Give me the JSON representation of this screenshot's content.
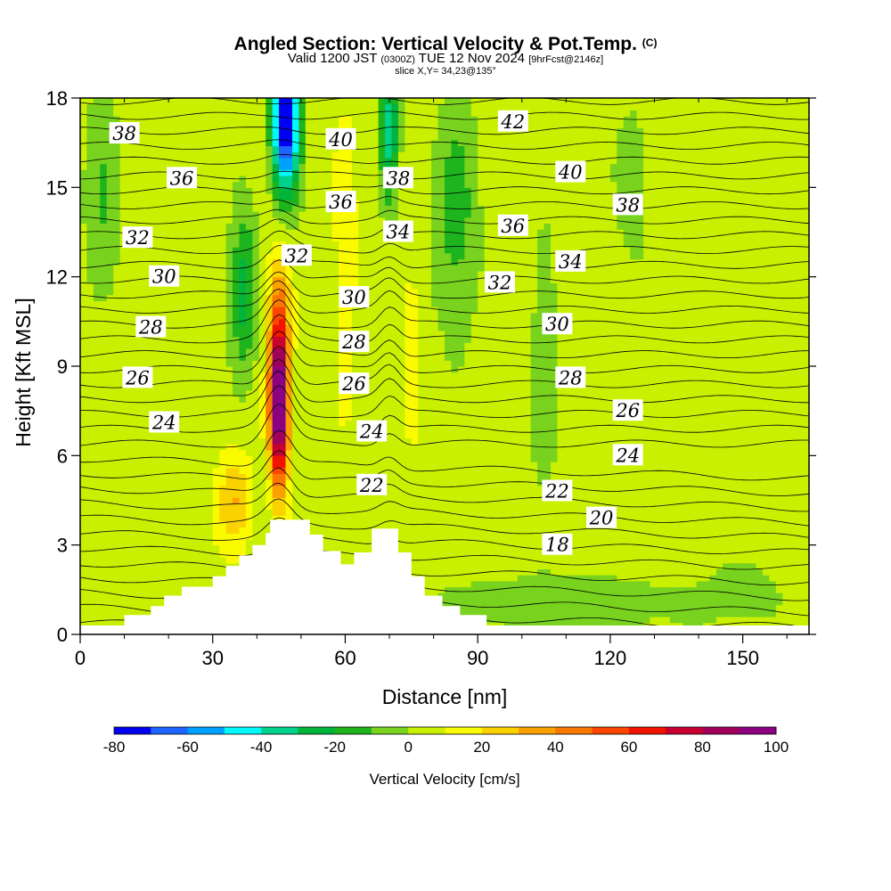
{
  "header": {
    "title": "Angled Section: Vertical Velocity & Pot.Temp.",
    "title_mark": "(C)",
    "subtitle_a": "Valid 1200 JST",
    "subtitle_b": "(0300Z)",
    "subtitle_c": "TUE 12 Nov 2024",
    "subtitle_d": "[9hrFcst@2146z]",
    "slice": "slice X,Y= 34,23@135°"
  },
  "chart_data": {
    "type": "heatmap",
    "xlabel": "Distance [nm]",
    "ylabel": "Height [Kft MSL]",
    "xlim": [
      0,
      165
    ],
    "ylim": [
      0,
      18
    ],
    "x_ticks": [
      0,
      30,
      60,
      90,
      120,
      150
    ],
    "y_ticks": [
      0,
      3,
      6,
      9,
      12,
      15,
      18
    ],
    "colorbar": {
      "label": "Vertical Velocity [cm/s]",
      "ticks": [
        -80,
        -60,
        -40,
        -20,
        0,
        20,
        40,
        60,
        80,
        100
      ],
      "levels": [
        -80,
        -70,
        -60,
        -50,
        -40,
        -30,
        -20,
        -10,
        0,
        10,
        20,
        30,
        40,
        50,
        60,
        70,
        80,
        90,
        100
      ],
      "colors": [
        "#0000f0",
        "#1e64ff",
        "#00a0ff",
        "#00fafa",
        "#00d28c",
        "#00b43c",
        "#1eb41e",
        "#78d21e",
        "#c8f000",
        "#fafa00",
        "#fad200",
        "#faa000",
        "#fa7800",
        "#fa4600",
        "#f01400",
        "#c80032",
        "#a0005a",
        "#8c0082"
      ]
    },
    "terrain_profile_kft": [
      [
        0,
        0.3
      ],
      [
        10,
        0.3
      ],
      [
        10,
        0.65
      ],
      [
        16,
        0.65
      ],
      [
        16,
        0.95
      ],
      [
        19,
        0.95
      ],
      [
        19,
        1.3
      ],
      [
        23,
        1.3
      ],
      [
        23,
        1.6
      ],
      [
        30,
        1.6
      ],
      [
        30,
        1.95
      ],
      [
        33,
        1.95
      ],
      [
        33,
        2.3
      ],
      [
        36,
        2.3
      ],
      [
        36,
        2.65
      ],
      [
        39,
        2.65
      ],
      [
        39,
        3.0
      ],
      [
        42,
        3.0
      ],
      [
        42,
        3.4
      ],
      [
        43,
        3.4
      ],
      [
        43,
        3.85
      ],
      [
        52,
        3.85
      ],
      [
        52,
        3.35
      ],
      [
        55,
        3.35
      ],
      [
        55,
        2.8
      ],
      [
        59,
        2.8
      ],
      [
        59,
        2.35
      ],
      [
        62,
        2.35
      ],
      [
        62,
        2.75
      ],
      [
        66,
        2.75
      ],
      [
        66,
        3.55
      ],
      [
        72,
        3.55
      ],
      [
        72,
        2.75
      ],
      [
        75,
        2.75
      ],
      [
        75,
        1.95
      ],
      [
        78,
        1.95
      ],
      [
        78,
        1.3
      ],
      [
        82,
        1.3
      ],
      [
        82,
        0.95
      ],
      [
        86,
        0.95
      ],
      [
        86,
        0.65
      ],
      [
        92,
        0.65
      ],
      [
        92,
        0.3
      ],
      [
        165,
        0.3
      ]
    ],
    "velocity_features_cm_s": [
      {
        "x": 45,
        "z": 7.5,
        "peak": 100
      },
      {
        "x": 35,
        "z": 4.5,
        "peak": 30
      },
      {
        "x": 46,
        "z": 17,
        "peak": -80
      },
      {
        "x": 70,
        "z": 17,
        "peak": -40
      },
      {
        "x": 60,
        "z": 12,
        "peak": 20
      },
      {
        "x": 75,
        "z": 9,
        "peak": 20
      },
      {
        "x": 37,
        "z": 11,
        "peak": -20
      },
      {
        "x": 90,
        "z": 14,
        "peak": -20
      }
    ],
    "pot_temp_labels_C": [
      {
        "value": "38",
        "x": 10,
        "z": 16.8
      },
      {
        "value": "36",
        "x": 23,
        "z": 15.3
      },
      {
        "value": "32",
        "x": 13,
        "z": 13.3
      },
      {
        "value": "30",
        "x": 19,
        "z": 12.0
      },
      {
        "value": "28",
        "x": 16,
        "z": 10.3
      },
      {
        "value": "26",
        "x": 13,
        "z": 8.6
      },
      {
        "value": "24",
        "x": 19,
        "z": 7.1
      },
      {
        "value": "40",
        "x": 59,
        "z": 16.6
      },
      {
        "value": "38",
        "x": 72,
        "z": 15.3
      },
      {
        "value": "36",
        "x": 59,
        "z": 14.5
      },
      {
        "value": "34",
        "x": 72,
        "z": 13.5
      },
      {
        "value": "32",
        "x": 49,
        "z": 12.7
      },
      {
        "value": "30",
        "x": 62,
        "z": 11.3
      },
      {
        "value": "28",
        "x": 62,
        "z": 9.8
      },
      {
        "value": "26",
        "x": 62,
        "z": 8.4
      },
      {
        "value": "24",
        "x": 66,
        "z": 6.8
      },
      {
        "value": "22",
        "x": 66,
        "z": 5.0
      },
      {
        "value": "42",
        "x": 98,
        "z": 17.2
      },
      {
        "value": "40",
        "x": 111,
        "z": 15.5
      },
      {
        "value": "38",
        "x": 124,
        "z": 14.4
      },
      {
        "value": "36",
        "x": 98,
        "z": 13.7
      },
      {
        "value": "34",
        "x": 111,
        "z": 12.5
      },
      {
        "value": "32",
        "x": 95,
        "z": 11.8
      },
      {
        "value": "30",
        "x": 108,
        "z": 10.4
      },
      {
        "value": "28",
        "x": 111,
        "z": 8.6
      },
      {
        "value": "26",
        "x": 124,
        "z": 7.5
      },
      {
        "value": "24",
        "x": 124,
        "z": 6.0
      },
      {
        "value": "22",
        "x": 108,
        "z": 4.8
      },
      {
        "value": "20",
        "x": 118,
        "z": 3.9
      },
      {
        "value": "18",
        "x": 108,
        "z": 3.0
      }
    ]
  }
}
